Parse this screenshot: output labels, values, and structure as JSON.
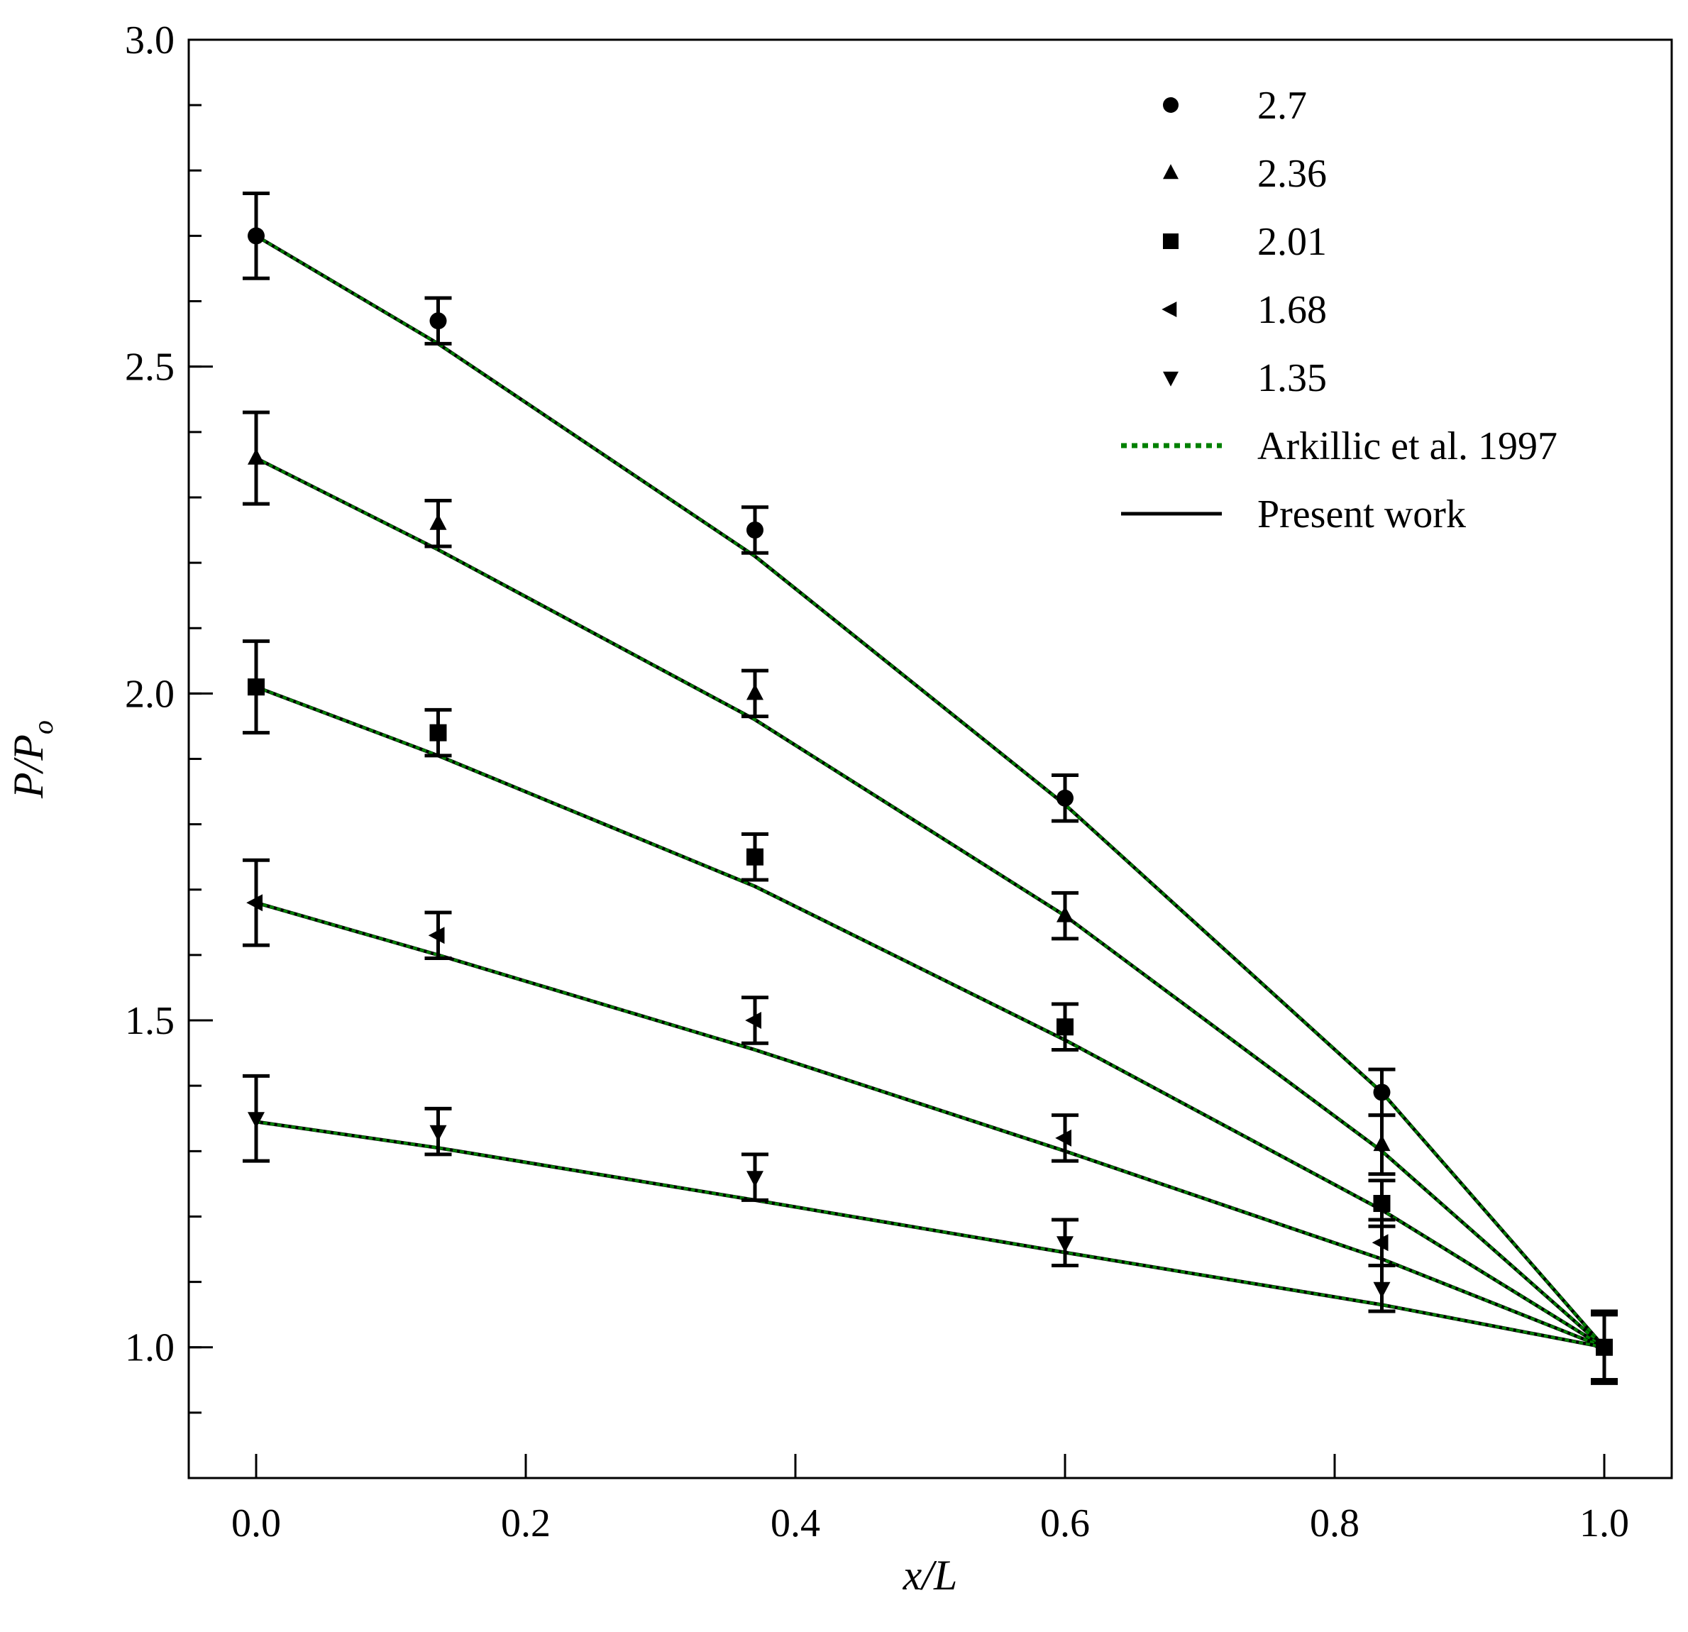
{
  "chart_data": {
    "type": "scatter",
    "title": "",
    "xlabel": "x/L",
    "ylabel": "P/P_o",
    "ylabel_parts": {
      "base": "P/P",
      "sub": "o"
    },
    "xlim": [
      -0.05,
      1.05
    ],
    "ylim": [
      0.8,
      3.0
    ],
    "x_ticks": [
      0.0,
      0.2,
      0.4,
      0.6,
      0.8,
      1.0
    ],
    "x_tick_labels": [
      "0.0",
      "0.2",
      "0.4",
      "0.6",
      "0.8",
      "1.0"
    ],
    "y_ticks": [
      1.0,
      1.5,
      2.0,
      2.5,
      3.0
    ],
    "y_tick_labels": [
      "1.0",
      "1.5",
      "2.0",
      "2.5",
      "3.0"
    ],
    "y_minor_step": 0.1,
    "grid": false,
    "legend_position": "top-right",
    "colors": {
      "markers": "#000000",
      "present_work": "#000000",
      "arkillic": "#008000"
    },
    "series": [
      {
        "name": "2.7",
        "marker": "circle",
        "x": [
          0.0,
          0.135,
          0.37,
          0.6,
          0.835,
          1.0
        ],
        "y": [
          2.7,
          2.57,
          2.25,
          1.84,
          1.39,
          1.0
        ],
        "err": [
          0.065,
          0.035,
          0.035,
          0.035,
          0.035,
          0.05
        ],
        "curve_x": [
          0.0,
          0.135,
          0.37,
          0.6,
          0.835,
          1.0
        ],
        "curve_y": [
          2.7,
          2.535,
          2.21,
          1.83,
          1.39,
          1.0
        ]
      },
      {
        "name": "2.36",
        "marker": "triangle-up",
        "x": [
          0.0,
          0.135,
          0.37,
          0.6,
          0.835,
          1.0
        ],
        "y": [
          2.36,
          2.26,
          2.0,
          1.66,
          1.31,
          1.0
        ],
        "err": [
          0.07,
          0.035,
          0.035,
          0.035,
          0.045,
          0.05
        ],
        "curve_x": [
          0.0,
          0.135,
          0.37,
          0.6,
          0.835,
          1.0
        ],
        "curve_y": [
          2.36,
          2.22,
          1.96,
          1.66,
          1.3,
          1.0
        ]
      },
      {
        "name": "2.01",
        "marker": "square",
        "x": [
          0.0,
          0.135,
          0.37,
          0.6,
          0.835,
          1.0
        ],
        "y": [
          2.01,
          1.94,
          1.75,
          1.49,
          1.22,
          1.0
        ],
        "err": [
          0.07,
          0.035,
          0.035,
          0.035,
          0.035,
          0.055
        ],
        "curve_x": [
          0.0,
          0.135,
          0.37,
          0.6,
          0.835,
          1.0
        ],
        "curve_y": [
          2.01,
          1.905,
          1.705,
          1.47,
          1.21,
          1.0
        ]
      },
      {
        "name": "1.68",
        "marker": "triangle-left",
        "x": [
          0.0,
          0.135,
          0.37,
          0.6,
          0.835,
          1.0
        ],
        "y": [
          1.68,
          1.63,
          1.5,
          1.32,
          1.16,
          1.0
        ],
        "err": [
          0.065,
          0.035,
          0.035,
          0.035,
          0.035,
          0.05
        ],
        "curve_x": [
          0.0,
          0.135,
          0.37,
          0.6,
          0.835,
          1.0
        ],
        "curve_y": [
          1.68,
          1.6,
          1.455,
          1.3,
          1.135,
          1.0
        ]
      },
      {
        "name": "1.35",
        "marker": "triangle-down",
        "x": [
          0.0,
          0.135,
          0.37,
          0.6,
          0.835,
          1.0
        ],
        "y": [
          1.35,
          1.33,
          1.26,
          1.16,
          1.09,
          1.0
        ],
        "err": [
          0.065,
          0.035,
          0.035,
          0.035,
          0.035,
          0.05
        ],
        "curve_x": [
          0.0,
          0.135,
          0.37,
          0.6,
          0.835,
          1.0
        ],
        "curve_y": [
          1.345,
          1.305,
          1.225,
          1.145,
          1.065,
          1.0
        ]
      }
    ],
    "line_legend": [
      {
        "name": "Arkillic et al. 1997",
        "style": "dotted",
        "color": "#008000"
      },
      {
        "name": "Present work",
        "style": "solid",
        "color": "#000000"
      }
    ]
  }
}
